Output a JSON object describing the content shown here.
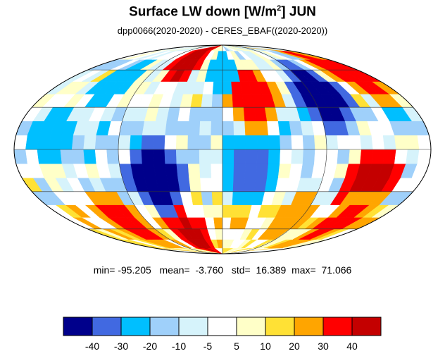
{
  "chart_data": {
    "type": "heatmap",
    "title": {
      "prefix": "Surface LW down [W/m",
      "superscript": "2",
      "suffix": "]  JUN"
    },
    "subtitle": "dpp0066(2020-2020) - CERES_EBAF((2020-2020))",
    "projection": "mollweide",
    "statistics": {
      "min_label": "min=",
      "min": "-95.205",
      "mean_label": "mean=",
      "mean": "-3.760",
      "std_label": "std=",
      "std": "16.389",
      "max_label": "max=",
      "max": "71.066"
    },
    "colorbar": {
      "colors": [
        "#00008b",
        "#4169e1",
        "#00bfff",
        "#9fd0fa",
        "#d6f3fb",
        "#ffffff",
        "#ffffc8",
        "#ffe135",
        "#ffa500",
        "#ff0000",
        "#c40000"
      ],
      "tick_labels": [
        "-40",
        "-30",
        "-20",
        "-10",
        "-5",
        "5",
        "10",
        "20",
        "30",
        "40"
      ]
    },
    "anomalies": [
      {
        "lon": 135,
        "lat": -25,
        "class": 10
      },
      {
        "lon": -115,
        "lat": -55,
        "class": 9
      },
      {
        "lon": -45,
        "lat": -70,
        "class": 10
      },
      {
        "lon": -55,
        "lat": 72,
        "class": 10
      },
      {
        "lon": 160,
        "lat": 60,
        "class": 9
      },
      {
        "lon": 30,
        "lat": 38,
        "class": 9
      },
      {
        "lon": -60,
        "lat": -20,
        "class": 0
      },
      {
        "lon": 100,
        "lat": 40,
        "class": 0
      },
      {
        "lon": 25,
        "lat": -15,
        "class": 1
      },
      {
        "lon": 0,
        "lat": 60,
        "class": 2
      },
      {
        "lon": -120,
        "lat": 50,
        "class": 2
      },
      {
        "lon": 140,
        "lat": -55,
        "class": 9
      },
      {
        "lon": 80,
        "lat": -50,
        "class": 8
      },
      {
        "lon": -150,
        "lat": 10,
        "class": 2
      }
    ]
  }
}
